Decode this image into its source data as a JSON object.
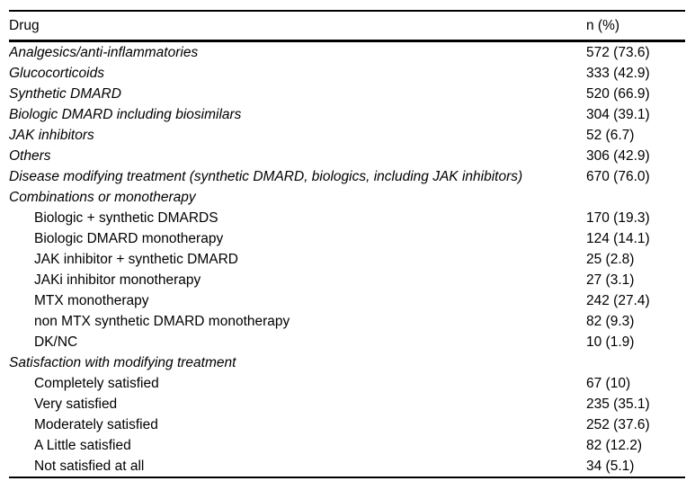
{
  "table": {
    "header": {
      "drug": "Drug",
      "n": "n (%)"
    },
    "rows": [
      {
        "label": "Analgesics/anti-inflammatories",
        "value": "572 (73.6)",
        "italic": true,
        "indent": false
      },
      {
        "label": "Glucocorticoids",
        "value": "333 (42.9)",
        "italic": true,
        "indent": false
      },
      {
        "label": "Synthetic DMARD",
        "value": "520 (66.9)",
        "italic": true,
        "indent": false
      },
      {
        "label": "Biologic DMARD including biosimilars",
        "value": "304 (39.1)",
        "italic": true,
        "indent": false
      },
      {
        "label": "JAK inhibitors",
        "value": "52 (6.7)",
        "italic": true,
        "indent": false
      },
      {
        "label": "Others",
        "value": "306 (42.9)",
        "italic": true,
        "indent": false
      },
      {
        "label": "Disease modifying treatment (synthetic DMARD, biologics, including JAK inhibitors)",
        "value": "670 (76.0)",
        "italic": true,
        "indent": false
      },
      {
        "label": "Combinations or monotherapy",
        "value": "",
        "italic": true,
        "indent": false
      },
      {
        "label": "Biologic + synthetic DMARDS",
        "value": "170 (19.3)",
        "italic": false,
        "indent": true
      },
      {
        "label": "Biologic DMARD monotherapy",
        "value": "124 (14.1)",
        "italic": false,
        "indent": true
      },
      {
        "label": "JAK inhibitor + synthetic DMARD",
        "value": "25 (2.8)",
        "italic": false,
        "indent": true
      },
      {
        "label": "JAKi inhibitor monotherapy",
        "value": "27 (3.1)",
        "italic": false,
        "indent": true
      },
      {
        "label": "MTX monotherapy",
        "value": "242 (27.4)",
        "italic": false,
        "indent": true
      },
      {
        "label": "non MTX synthetic DMARD monotherapy",
        "value": "82 (9.3)",
        "italic": false,
        "indent": true
      },
      {
        "label": "DK/NC",
        "value": "10 (1.9)",
        "italic": false,
        "indent": true
      },
      {
        "label": "Satisfaction with modifying treatment",
        "value": "",
        "italic": true,
        "indent": false
      },
      {
        "label": "Completely satisfied",
        "value": "67 (10)",
        "italic": false,
        "indent": true
      },
      {
        "label": "Very satisfied",
        "value": "235 (35.1)",
        "italic": false,
        "indent": true
      },
      {
        "label": "Moderately satisfied",
        "value": "252 (37.6)",
        "italic": false,
        "indent": true
      },
      {
        "label": "A Little satisfied",
        "value": "82 (12.2)",
        "italic": false,
        "indent": true
      },
      {
        "label": "Not satisfied at all",
        "value": "34 (5.1)",
        "italic": false,
        "indent": true
      }
    ]
  },
  "colors": {
    "text": "#000000",
    "rule": "#000000",
    "background": "#ffffff"
  }
}
